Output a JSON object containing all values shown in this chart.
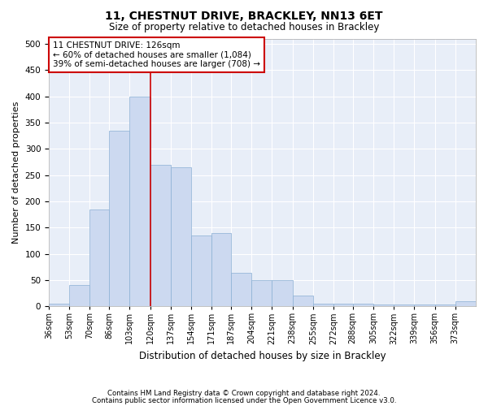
{
  "title": "11, CHESTNUT DRIVE, BRACKLEY, NN13 6ET",
  "subtitle": "Size of property relative to detached houses in Brackley",
  "xlabel": "Distribution of detached houses by size in Brackley",
  "ylabel": "Number of detached properties",
  "bar_color": "#ccd9f0",
  "bar_edge_color": "#8aafd4",
  "background_color": "#e8eef8",
  "grid_color": "#ffffff",
  "annotation_box_color": "#cc0000",
  "property_line_color": "#cc0000",
  "annotation_line1": "11 CHESTNUT DRIVE: 126sqm",
  "annotation_line2": "← 60% of detached houses are smaller (1,084)",
  "annotation_line3": "39% of semi-detached houses are larger (708) →",
  "footnote1": "Contains HM Land Registry data © Crown copyright and database right 2024.",
  "footnote2": "Contains public sector information licensed under the Open Government Licence v3.0.",
  "bins": [
    "36sqm",
    "53sqm",
    "70sqm",
    "86sqm",
    "103sqm",
    "120sqm",
    "137sqm",
    "154sqm",
    "171sqm",
    "187sqm",
    "204sqm",
    "221sqm",
    "238sqm",
    "255sqm",
    "272sqm",
    "288sqm",
    "305sqm",
    "322sqm",
    "339sqm",
    "356sqm",
    "373sqm"
  ],
  "bin_edges": [
    36,
    53,
    70,
    86,
    103,
    120,
    137,
    154,
    171,
    187,
    204,
    221,
    238,
    255,
    272,
    288,
    305,
    322,
    339,
    356,
    373,
    390
  ],
  "values": [
    5,
    40,
    185,
    335,
    400,
    270,
    265,
    135,
    140,
    63,
    50,
    50,
    20,
    5,
    5,
    5,
    3,
    3,
    3,
    3,
    10
  ],
  "ylim": [
    0,
    510
  ],
  "yticks": [
    0,
    50,
    100,
    150,
    200,
    250,
    300,
    350,
    400,
    450,
    500
  ],
  "property_line_x": 120
}
